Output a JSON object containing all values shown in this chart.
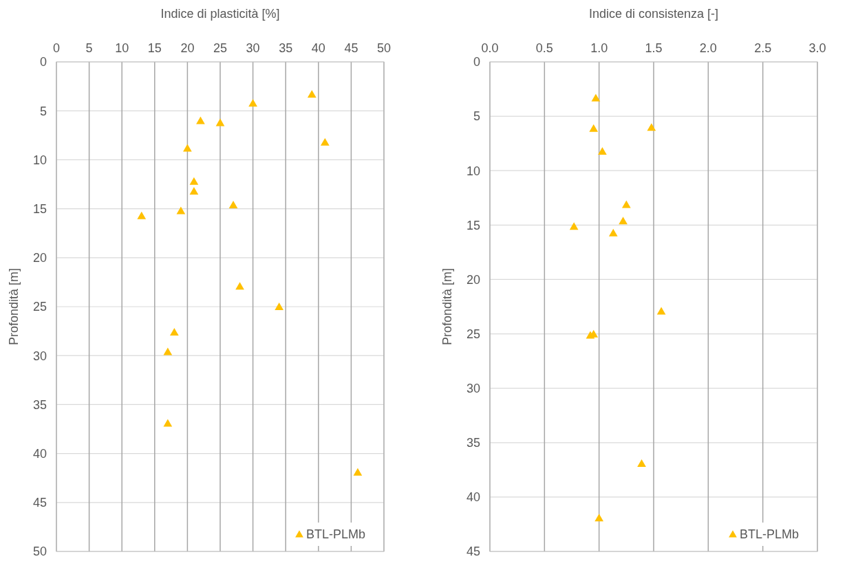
{
  "chart_data": [
    {
      "type": "scatter",
      "xlabel": "Indice di plasticità [%]",
      "ylabel": "Profondità [m]",
      "xlim": [
        0,
        50
      ],
      "xticks": [
        0,
        5,
        10,
        15,
        20,
        25,
        30,
        35,
        40,
        45,
        50
      ],
      "ylim": [
        50,
        0
      ],
      "yticks": [
        0,
        5,
        10,
        15,
        20,
        25,
        30,
        35,
        40,
        45,
        50
      ],
      "grid": true,
      "legend": "bottom right",
      "marker": "triangle",
      "series": [
        {
          "name": "BTL-PLMb",
          "color": "#ffc000",
          "x": [
            39,
            30,
            22,
            25,
            41,
            20,
            21,
            21,
            27,
            19,
            13,
            28,
            34,
            18,
            17,
            17,
            46
          ],
          "values": [
            3.4,
            4.3,
            6.1,
            6.3,
            8.3,
            8.9,
            12.3,
            13.3,
            14.7,
            15.3,
            15.8,
            23.0,
            25.1,
            27.7,
            29.7,
            37.0,
            42.0
          ]
        }
      ]
    },
    {
      "type": "scatter",
      "xlabel": "Indice di consistenza [-]",
      "ylabel": "Profondità [m]",
      "xlim": [
        0,
        3
      ],
      "xticks": [
        {
          "value": 0,
          "label": "0.0"
        },
        {
          "value": 0.5,
          "label": "0.5"
        },
        {
          "value": 1,
          "label": "1.0"
        },
        {
          "value": 1.5,
          "label": "1.5"
        },
        {
          "value": 2,
          "label": "2.0"
        },
        {
          "value": 2.5,
          "label": "2.5"
        },
        {
          "value": 3,
          "label": "3.0"
        }
      ],
      "ylim": [
        45,
        0
      ],
      "yticks": [
        0,
        5,
        10,
        15,
        20,
        25,
        30,
        35,
        40,
        45
      ],
      "grid": true,
      "legend": "bottom right",
      "marker": "triangle",
      "series": [
        {
          "name": "BTL-PLMb",
          "color": "#ffc000",
          "x": [
            0.97,
            0.95,
            1.48,
            1.03,
            1.25,
            1.22,
            0.77,
            1.13,
            1.57,
            0.95,
            0.92,
            1.39,
            1.0
          ],
          "values": [
            3.4,
            6.2,
            6.1,
            8.3,
            13.2,
            14.7,
            15.2,
            15.8,
            23.0,
            25.1,
            25.2,
            37.0,
            42.0
          ]
        }
      ]
    }
  ]
}
